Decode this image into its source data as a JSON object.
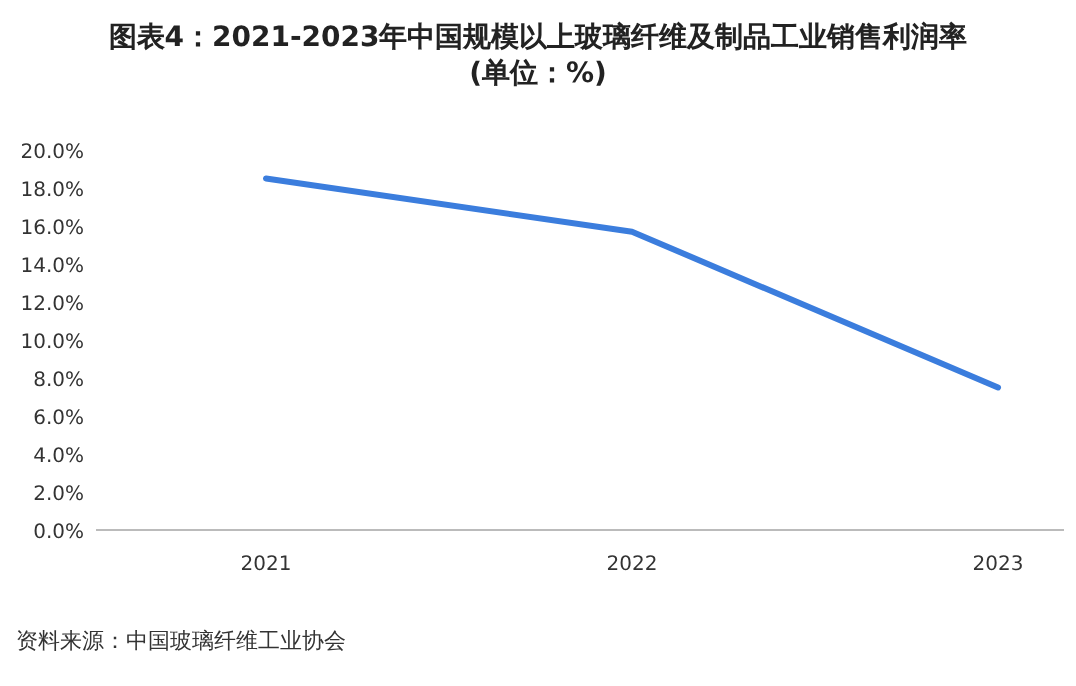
{
  "chart_data": {
    "type": "line",
    "title": "图表4：2021-2023年中国规模以上玻璃纤维及制品工业销售利润率(单位：%)",
    "categories": [
      "2021",
      "2022",
      "2023"
    ],
    "series": [
      {
        "color": "#3b7ddd",
        "values": [
          18.5,
          15.7,
          7.5
        ]
      }
    ],
    "ylim": [
      0,
      20
    ],
    "yticks": [
      {
        "value": 0,
        "label": "0.0%"
      },
      {
        "value": 2,
        "label": "2.0%"
      },
      {
        "value": 4,
        "label": "4.0%"
      },
      {
        "value": 6,
        "label": "6.0%"
      },
      {
        "value": 8,
        "label": "8.0%"
      },
      {
        "value": 10,
        "label": "10.0%"
      },
      {
        "value": 12,
        "label": "12.0%"
      },
      {
        "value": 14,
        "label": "14.0%"
      },
      {
        "value": 16,
        "label": "16.0%"
      },
      {
        "value": 18,
        "label": "18.0%"
      },
      {
        "value": 20,
        "label": "20.0%"
      }
    ],
    "annotations": [
      "资料来源：中国玻璃纤维工业协会"
    ]
  }
}
